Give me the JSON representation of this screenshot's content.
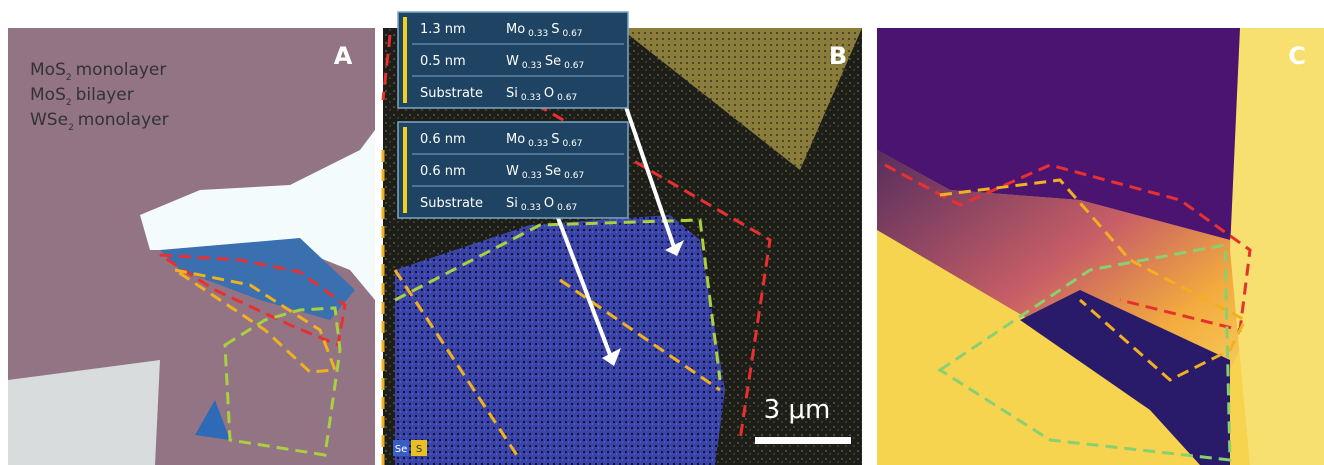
{
  "panels": {
    "a": {
      "label": "A",
      "legend": [
        {
          "formula": "MoS",
          "sub": "2",
          "text": "monolayer"
        },
        {
          "formula": "MoS",
          "sub": "2",
          "text": "bilayer"
        },
        {
          "formula": "WSe",
          "sub": "2",
          "text": "monolayer"
        }
      ]
    },
    "b": {
      "label": "B",
      "scale_bar": "3 μm",
      "channels": [
        "Se",
        "S"
      ],
      "boxes": [
        [
          {
            "thickness": "1.3 nm",
            "el1": "Mo",
            "sub1": "0.33",
            "el2": "S",
            "sub2": "0.67"
          },
          {
            "thickness": "0.5 nm",
            "el1": "W",
            "sub1": "0.33",
            "el2": "Se",
            "sub2": "0.67"
          },
          {
            "thickness": "Substrate",
            "el1": "Si",
            "sub1": "0.33",
            "el2": "O",
            "sub2": "0.67"
          }
        ],
        [
          {
            "thickness": "0.6 nm",
            "el1": "Mo",
            "sub1": "0.33",
            "el2": "S",
            "sub2": "0.67"
          },
          {
            "thickness": "0.6 nm",
            "el1": "W",
            "sub1": "0.33",
            "el2": "Se",
            "sub2": "0.67"
          },
          {
            "thickness": "Substrate",
            "el1": "Si",
            "sub1": "0.33",
            "el2": "O",
            "sub2": "0.67"
          }
        ]
      ]
    },
    "c": {
      "label": "C"
    }
  }
}
